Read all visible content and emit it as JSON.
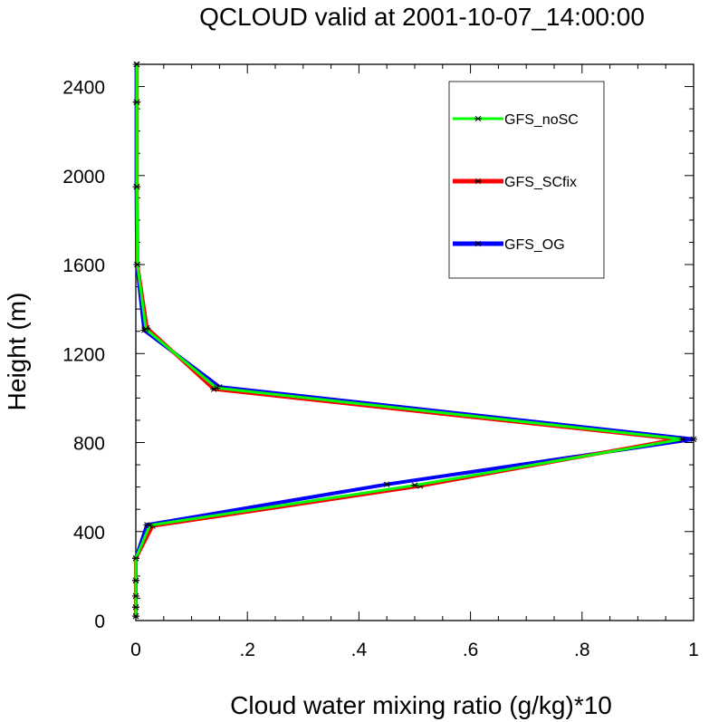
{
  "chart_data": {
    "type": "line",
    "title": "QCLOUD valid at 2001-10-07_14:00:00",
    "xlabel": "Cloud water mixing ratio (g/kg)*10",
    "ylabel": "Height (m)",
    "xlim": [
      0,
      1
    ],
    "ylim": [
      0,
      2500
    ],
    "x_ticks": [
      0,
      0.2,
      0.4,
      0.6,
      0.8,
      1.0
    ],
    "x_tick_labels": [
      "0",
      ".2",
      ".4",
      ".6",
      ".8",
      "1"
    ],
    "y_ticks": [
      0,
      400,
      800,
      1200,
      1600,
      2000,
      2400
    ],
    "y_tick_labels": [
      "0",
      "400",
      "800",
      "1200",
      "1600",
      "2000",
      "2400"
    ],
    "grid": false,
    "legend_position": "top-right",
    "marker": "asterisk",
    "series": [
      {
        "name": "GFS_OG",
        "color": "#0000ff",
        "line_weight": "thick",
        "points": [
          {
            "x": 0.0,
            "y": 20
          },
          {
            "x": 0.0,
            "y": 60
          },
          {
            "x": 0.0,
            "y": 110
          },
          {
            "x": 0.0,
            "y": 180
          },
          {
            "x": 0.0,
            "y": 280
          },
          {
            "x": 0.02,
            "y": 430
          },
          {
            "x": 0.45,
            "y": 612
          },
          {
            "x": 1.0,
            "y": 815
          },
          {
            "x": 0.15,
            "y": 1050
          },
          {
            "x": 0.015,
            "y": 1305
          },
          {
            "x": 0.002,
            "y": 1600
          },
          {
            "x": 0.001,
            "y": 1950
          },
          {
            "x": 0.001,
            "y": 2330
          },
          {
            "x": 0.001,
            "y": 2500
          }
        ]
      },
      {
        "name": "GFS_SCfix",
        "color": "#ff0000",
        "line_weight": "thick",
        "points": [
          {
            "x": 0.0,
            "y": 20
          },
          {
            "x": 0.0,
            "y": 60
          },
          {
            "x": 0.0,
            "y": 110
          },
          {
            "x": 0.0,
            "y": 180
          },
          {
            "x": 0.0,
            "y": 280
          },
          {
            "x": 0.03,
            "y": 425
          },
          {
            "x": 0.51,
            "y": 605
          },
          {
            "x": 0.97,
            "y": 815
          },
          {
            "x": 0.14,
            "y": 1040
          },
          {
            "x": 0.02,
            "y": 1315
          },
          {
            "x": 0.003,
            "y": 1600
          },
          {
            "x": 0.002,
            "y": 1950
          },
          {
            "x": 0.002,
            "y": 2330
          },
          {
            "x": 0.002,
            "y": 2500
          }
        ]
      },
      {
        "name": "GFS_noSC",
        "color": "#00ff00",
        "line_weight": "thin",
        "points": [
          {
            "x": 0.0,
            "y": 20
          },
          {
            "x": 0.0,
            "y": 60
          },
          {
            "x": 0.0,
            "y": 110
          },
          {
            "x": 0.0,
            "y": 180
          },
          {
            "x": 0.0,
            "y": 280
          },
          {
            "x": 0.025,
            "y": 428
          },
          {
            "x": 0.5,
            "y": 608
          },
          {
            "x": 0.98,
            "y": 815
          },
          {
            "x": 0.145,
            "y": 1045
          },
          {
            "x": 0.018,
            "y": 1310
          },
          {
            "x": 0.003,
            "y": 1600
          },
          {
            "x": 0.002,
            "y": 1950
          },
          {
            "x": 0.002,
            "y": 2330
          },
          {
            "x": 0.002,
            "y": 2500
          }
        ]
      }
    ],
    "legend": [
      {
        "label": "GFS_noSC",
        "color": "#00ff00",
        "line_weight": "thin"
      },
      {
        "label": "GFS_SCfix",
        "color": "#ff0000",
        "line_weight": "thick"
      },
      {
        "label": "GFS_OG",
        "color": "#0000ff",
        "line_weight": "thick"
      }
    ]
  }
}
